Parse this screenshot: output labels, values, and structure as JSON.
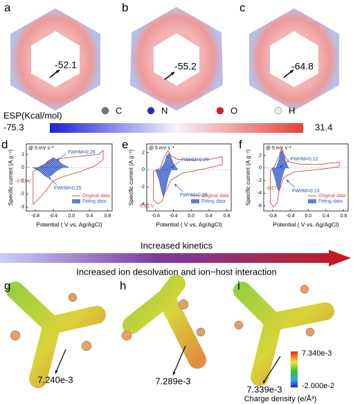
{
  "panels_top": [
    {
      "label": "a",
      "value": "-52.1"
    },
    {
      "label": "b",
      "value": "-55.2"
    },
    {
      "label": "c",
      "value": "-64.8"
    }
  ],
  "esp_legend": {
    "title": "ESP(Kcal/mol)",
    "atoms": [
      "C",
      "N",
      "O",
      "H"
    ],
    "min": "-75.3",
    "max": "31.4"
  },
  "cv_plots": [
    {
      "label": "d",
      "scan_rate": "@ 5 mV s⁻¹",
      "ylabel": "Specific current (A g⁻¹)",
      "xlabel": "Potential ( V vs. Ag/AgCl)",
      "xlim": [
        -1,
        0.9
      ],
      "ylim": [
        -3.3,
        1.8
      ],
      "xticks": [
        -0.8,
        -0.4,
        {
          "value": 0,
          "label": "0.0"
        },
        0.4,
        0.8
      ],
      "yticks": [
        1,
        0,
        -1,
        -2,
        -3
      ],
      "fwhm_upper": "FWHM=0.26",
      "fwhm_lower": "FWHM=0.25",
      "peak": "-0.53 V",
      "series": [
        {
          "name": "Original data",
          "color": "#c0504d",
          "x": [
            -0.85,
            -0.6,
            -0.4,
            -0.2,
            0,
            0.3,
            0.6,
            0.7,
            0.7,
            0.5,
            0.2,
            -0.2,
            -0.4,
            -0.53,
            -0.7,
            -0.85,
            -0.85
          ],
          "y": [
            -0.3,
            0.2,
            0.6,
            0.7,
            0.8,
            0.9,
            1.0,
            1.3,
            0.6,
            0.1,
            -0.3,
            -0.7,
            -1.0,
            -1.6,
            -2.3,
            -2.8,
            -0.3
          ]
        },
        {
          "name": "Fitting data",
          "color": "#3f63c8",
          "fits": [
            {
              "x": [
                -0.75,
                -0.6,
                -0.5,
                -0.4,
                -0.3,
                -0.2,
                -0.05
              ],
              "y": [
                0,
                0.25,
                0.55,
                0.75,
                0.55,
                0.25,
                0
              ]
            },
            {
              "x": [
                -0.85,
                -0.7,
                -0.6,
                -0.53,
                -0.45,
                -0.35,
                -0.2
              ],
              "y": [
                0,
                -0.3,
                -0.6,
                -0.75,
                -0.6,
                -0.3,
                0
              ]
            }
          ]
        }
      ]
    },
    {
      "label": "e",
      "scan_rate": "@ 5 mV s⁻¹",
      "ylabel": "Specific current (A g⁻¹)",
      "xlabel": "Potential ( V vs. Ag/AgCl)",
      "xlim": [
        -1,
        0.9
      ],
      "ylim": [
        -4.8,
        3
      ],
      "xticks": [
        -0.8,
        -0.4,
        {
          "value": 0,
          "label": "0.0"
        },
        0.4,
        0.8
      ],
      "yticks": [
        2,
        0,
        -2,
        -4
      ],
      "fwhm_upper": "FWHM=0.20",
      "fwhm_lower": "FWHM=0.19",
      "peak": "-0.63 V",
      "series": [
        {
          "name": "Original data",
          "color": "#c0504d",
          "x": [
            -0.85,
            -0.7,
            -0.6,
            -0.52,
            -0.45,
            -0.3,
            0,
            0.4,
            0.7,
            0.7,
            0.3,
            -0.2,
            -0.45,
            -0.6,
            -0.65,
            -0.75,
            -0.85,
            -0.85
          ],
          "y": [
            -0.2,
            0.2,
            1.5,
            2.2,
            1.6,
            1.2,
            1.1,
            1.2,
            1.5,
            0.6,
            0.1,
            -0.4,
            -1.2,
            -2.8,
            -3.6,
            -4.0,
            -3.5,
            -0.2
          ]
        },
        {
          "name": "Fitting data",
          "color": "#3f63c8",
          "fits": [
            {
              "x": [
                -0.7,
                -0.6,
                -0.55,
                -0.5,
                -0.45,
                -0.4,
                -0.3
              ],
              "y": [
                0,
                0.8,
                1.6,
                1.9,
                1.4,
                0.7,
                0
              ]
            },
            {
              "x": [
                -0.8,
                -0.72,
                -0.67,
                -0.63,
                -0.58,
                -0.52,
                -0.45
              ],
              "y": [
                0,
                -1.2,
                -2.4,
                -3.1,
                -2.4,
                -1.0,
                0
              ]
            }
          ]
        }
      ]
    },
    {
      "label": "f",
      "scan_rate": "@ 5 mV s⁻¹",
      "ylabel": "Specific current (A g⁻¹)",
      "xlabel": "Potential ( V vs. Ag/AgCl)",
      "xlim": [
        -1,
        0.9
      ],
      "ylim": [
        -6.8,
        3.8
      ],
      "xticks": [
        -0.8,
        -0.4,
        {
          "value": 0,
          "label": "0.0"
        },
        0.4,
        0.8
      ],
      "yticks": [
        2,
        0,
        -2,
        -4,
        -6
      ],
      "fwhm_upper": "FWHM=0.12",
      "fwhm_lower": "FWHM=0.13",
      "peak": "-0.67 V",
      "series": [
        {
          "name": "Original data",
          "color": "#c0504d",
          "x": [
            -0.85,
            -0.75,
            -0.65,
            -0.6,
            -0.55,
            -0.45,
            -0.2,
            0.3,
            0.7,
            0.7,
            0.3,
            -0.3,
            -0.55,
            -0.65,
            -0.7,
            -0.78,
            -0.85,
            -0.85
          ],
          "y": [
            -0.5,
            0.3,
            2,
            3.2,
            2.2,
            1.0,
            0.6,
            0.6,
            0.9,
            0.2,
            -0.2,
            -0.6,
            -1.5,
            -3.5,
            -5.5,
            -6.2,
            -5.5,
            -0.5
          ]
        },
        {
          "name": "Fitting data",
          "color": "#3f63c8",
          "fits": [
            {
              "x": [
                -0.72,
                -0.66,
                -0.62,
                -0.59,
                -0.55,
                -0.5,
                -0.44
              ],
              "y": [
                0,
                1.2,
                2.4,
                2.8,
                2.2,
                0.9,
                0
              ]
            },
            {
              "x": [
                -0.82,
                -0.75,
                -0.7,
                -0.67,
                -0.63,
                -0.58,
                -0.52
              ],
              "y": [
                0,
                -1.5,
                -3.0,
                -3.6,
                -2.8,
                -1.2,
                0
              ]
            }
          ]
        }
      ]
    }
  ],
  "trend": {
    "top": "Increased kinetics",
    "bottom": "Increased ion desolvation and ion−host interaction"
  },
  "panels_bottom": [
    {
      "label": "g",
      "value": "7.240e-3"
    },
    {
      "label": "h",
      "value": "7.289e-3"
    },
    {
      "label": "i",
      "value": "7.339e-3"
    }
  ],
  "charge_legend": {
    "max": "7.340e-3",
    "min": "-2.000e-2",
    "title": "Charge density (e/Å³)"
  }
}
